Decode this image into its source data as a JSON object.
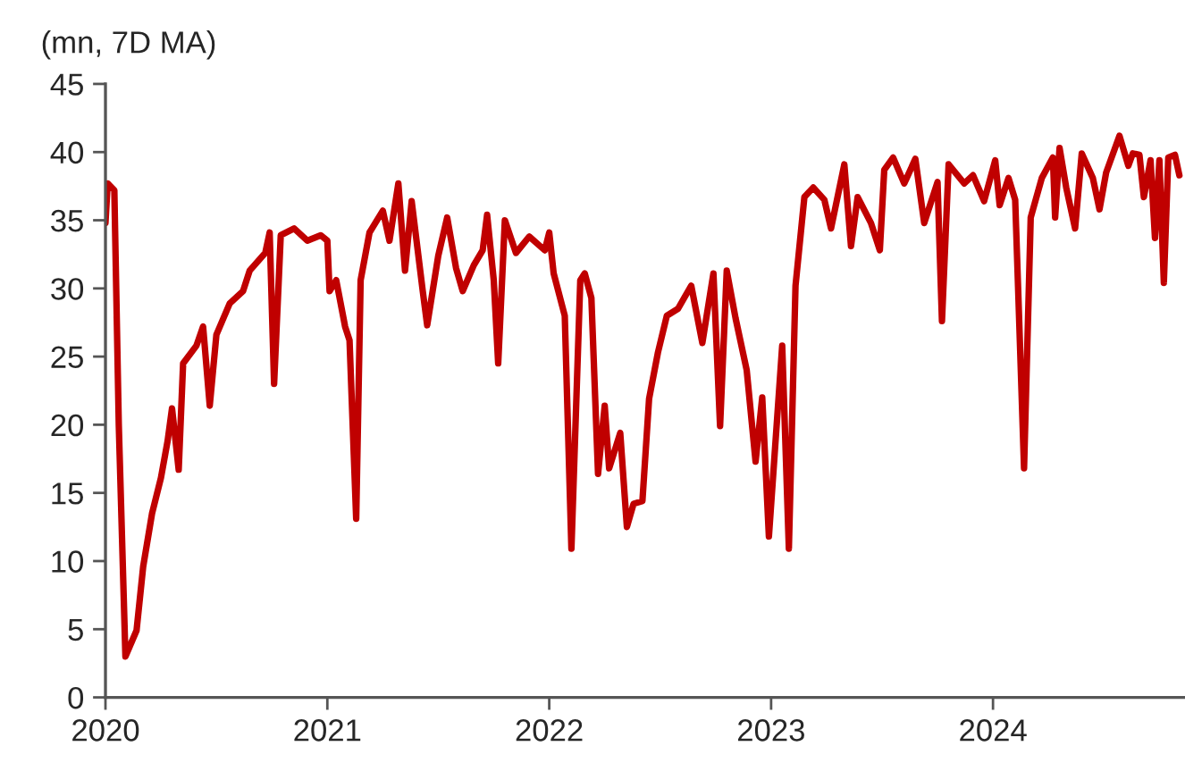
{
  "chart_data": {
    "type": "line",
    "ylabel": "(mn, 7D MA)",
    "x": [
      2020.0,
      2020.01,
      2020.04,
      2020.06,
      2020.09,
      2020.14,
      2020.17,
      2020.21,
      2020.25,
      2020.28,
      2020.3,
      2020.33,
      2020.35,
      2020.41,
      2020.44,
      2020.47,
      2020.5,
      2020.56,
      2020.62,
      2020.65,
      2020.72,
      2020.74,
      2020.76,
      2020.79,
      2020.85,
      2020.91,
      2020.97,
      2021.0,
      2021.01,
      2021.04,
      2021.08,
      2021.1,
      2021.13,
      2021.15,
      2021.19,
      2021.25,
      2021.28,
      2021.32,
      2021.35,
      2021.38,
      2021.43,
      2021.45,
      2021.5,
      2021.54,
      2021.58,
      2021.61,
      2021.66,
      2021.7,
      2021.72,
      2021.75,
      2021.77,
      2021.8,
      2021.85,
      2021.91,
      2021.98,
      2022.0,
      2022.02,
      2022.07,
      2022.1,
      2022.14,
      2022.16,
      2022.19,
      2022.22,
      2022.25,
      2022.27,
      2022.32,
      2022.35,
      2022.38,
      2022.42,
      2022.45,
      2022.49,
      2022.53,
      2022.58,
      2022.64,
      2022.69,
      2022.74,
      2022.77,
      2022.8,
      2022.84,
      2022.89,
      2022.93,
      2022.96,
      2022.99,
      2023.05,
      2023.08,
      2023.11,
      2023.15,
      2023.19,
      2023.24,
      2023.27,
      2023.33,
      2023.36,
      2023.39,
      2023.45,
      2023.49,
      2023.51,
      2023.55,
      2023.6,
      2023.65,
      2023.69,
      2023.75,
      2023.77,
      2023.8,
      2023.87,
      2023.91,
      2023.96,
      2024.01,
      2024.03,
      2024.07,
      2024.1,
      2024.14,
      2024.17,
      2024.22,
      2024.27,
      2024.28,
      2024.3,
      2024.33,
      2024.37,
      2024.4,
      2024.45,
      2024.48,
      2024.51,
      2024.57,
      2024.61,
      2024.63,
      2024.66,
      2024.68,
      2024.71,
      2024.73,
      2024.75,
      2024.77,
      2024.79,
      2024.82,
      2024.84
    ],
    "series": [
      {
        "color": "#c00000",
        "values": [
          34.8,
          37.7,
          37.2,
          20,
          3.0,
          4.9,
          9.6,
          13.5,
          16.1,
          18.8,
          21.2,
          16.7,
          24.5,
          25.8,
          27.2,
          21.4,
          26.6,
          28.9,
          29.8,
          31.3,
          32.6,
          34.1,
          23.0,
          33.9,
          34.4,
          33.5,
          33.9,
          33.5,
          29.8,
          30.6,
          27.2,
          26.2,
          13.1,
          30.6,
          34.1,
          35.7,
          33.5,
          37.7,
          31.3,
          36.4,
          29.8,
          27.3,
          32.4,
          35.2,
          31.5,
          29.8,
          31.7,
          32.8,
          35.4,
          30.6,
          24.5,
          35.0,
          32.6,
          33.8,
          32.8,
          34.1,
          31.1,
          28.0,
          10.9,
          30.6,
          31.1,
          29.3,
          16.4,
          21.4,
          16.8,
          19.4,
          12.5,
          14.2,
          14.4,
          21.9,
          25.3,
          28.0,
          28.5,
          30.2,
          26.0,
          31.1,
          19.9,
          31.3,
          27.8,
          24.0,
          17.3,
          22.0,
          11.8,
          25.8,
          10.9,
          30.2,
          36.7,
          37.4,
          36.5,
          34.4,
          39.1,
          33.1,
          36.7,
          34.8,
          32.8,
          38.7,
          39.6,
          37.7,
          39.5,
          34.8,
          37.8,
          27.6,
          39.1,
          37.7,
          38.3,
          36.4,
          39.4,
          36.1,
          38.1,
          36.5,
          16.8,
          35.2,
          38.1,
          39.6,
          35.2,
          40.3,
          37.4,
          34.4,
          39.9,
          38.1,
          35.8,
          38.5,
          41.2,
          39.0,
          39.9,
          39.8,
          36.7,
          39.4,
          33.7,
          39.4,
          30.4,
          39.6,
          39.8,
          38.3
        ]
      }
    ],
    "xlim": [
      2020,
      2024.86
    ],
    "xticks": [
      2020,
      2021,
      2022,
      2023,
      2024
    ],
    "ylim": [
      0,
      45
    ],
    "yticks": [
      0,
      5,
      10,
      15,
      20,
      25,
      30,
      35,
      40,
      45
    ],
    "grid": false,
    "marker": "none",
    "line_style": "solid"
  }
}
